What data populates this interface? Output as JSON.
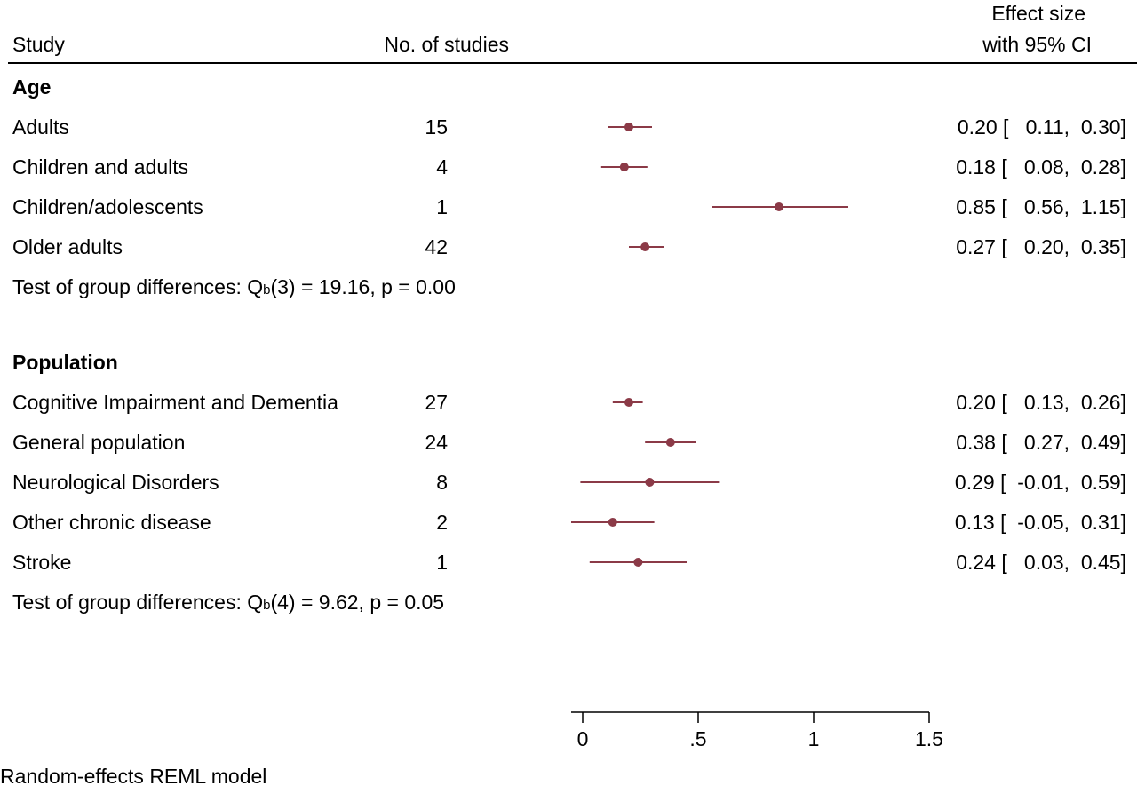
{
  "chart_data": {
    "type": "forest",
    "headers": {
      "study": "Study",
      "n_studies": "No. of studies",
      "effect_line1": "Effect size",
      "effect_line2": "with 95% CI"
    },
    "groups": [
      {
        "name": "Age",
        "rows": [
          {
            "label": "Adults",
            "n": 15,
            "es": 0.2,
            "lo": 0.11,
            "hi": 0.3,
            "ci_text": "0.20 [   0.11,  0.30]"
          },
          {
            "label": "Children and adults",
            "n": 4,
            "es": 0.18,
            "lo": 0.08,
            "hi": 0.28,
            "ci_text": "0.18 [   0.08,  0.28]"
          },
          {
            "label": "Children/adolescents",
            "n": 1,
            "es": 0.85,
            "lo": 0.56,
            "hi": 1.15,
            "ci_text": "0.85 [   0.56,  1.15]"
          },
          {
            "label": "Older adults",
            "n": 42,
            "es": 0.27,
            "lo": 0.2,
            "hi": 0.35,
            "ci_text": "0.27 [   0.20,  0.35]"
          }
        ],
        "test_text_prefix": "Test of group differences: Q",
        "test_text_sub": "b",
        "test_text_suffix": "(3) = 19.16, p = 0.00"
      },
      {
        "name": "Population",
        "rows": [
          {
            "label": "Cognitive Impairment and Dementia",
            "n": 27,
            "es": 0.2,
            "lo": 0.13,
            "hi": 0.26,
            "ci_text": "0.20 [   0.13,  0.26]"
          },
          {
            "label": "General population",
            "n": 24,
            "es": 0.38,
            "lo": 0.27,
            "hi": 0.49,
            "ci_text": "0.38 [   0.27,  0.49]"
          },
          {
            "label": "Neurological Disorders",
            "n": 8,
            "es": 0.29,
            "lo": -0.01,
            "hi": 0.59,
            "ci_text": "0.29 [  -0.01,  0.59]"
          },
          {
            "label": "Other chronic disease",
            "n": 2,
            "es": 0.13,
            "lo": -0.05,
            "hi": 0.31,
            "ci_text": "0.13 [  -0.05,  0.31]"
          },
          {
            "label": "Stroke",
            "n": 1,
            "es": 0.24,
            "lo": 0.03,
            "hi": 0.45,
            "ci_text": "0.24 [   0.03,  0.45]"
          }
        ],
        "test_text_prefix": "Test of group differences: Q",
        "test_text_sub": "b",
        "test_text_suffix": "(4) = 9.62, p = 0.05"
      }
    ],
    "x_ticks": [
      0,
      0.5,
      1,
      1.5
    ],
    "x_tick_labels": [
      "0",
      ".5",
      "1",
      "1.5"
    ],
    "xlim": [
      -0.05,
      1.5
    ],
    "marker_color": "#8b3a47",
    "footnote": "Random-effects REML model"
  }
}
